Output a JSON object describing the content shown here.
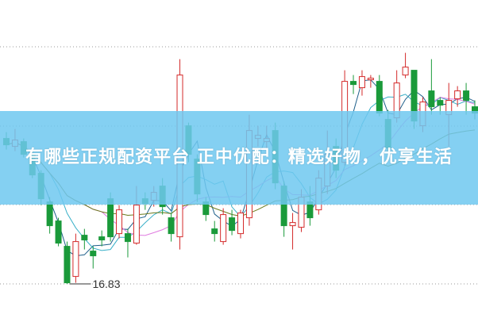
{
  "banner": {
    "title": "有哪些正规配资平台 正中优配：精选好物，优享生活"
  },
  "chart_data": {
    "type": "candlestick",
    "grid": true,
    "low_marker": {
      "label": "16.83",
      "value": 16.83
    },
    "colors": {
      "up": "#d42a2a",
      "down": "#1a9a3a",
      "ma": [
        "#1e5f8a",
        "#3ab0c8",
        "#e07ae0",
        "#6b7a1c"
      ],
      "grid": "#999999",
      "banner": "#6ec8f0"
    },
    "ylim": [
      16.0,
      33.0
    ],
    "gridlines": [
      31.78,
      26.78,
      21.83,
      16.83
    ],
    "ohlc": [
      [
        26.0,
        25.6,
        26.4,
        25.3
      ],
      [
        25.5,
        25.9,
        26.6,
        25.2
      ],
      [
        25.8,
        25.0,
        26.0,
        24.8
      ],
      [
        25.0,
        23.7,
        25.2,
        23.5
      ],
      [
        23.8,
        22.2,
        24.0,
        21.8
      ],
      [
        22.0,
        20.5,
        22.3,
        20.0
      ],
      [
        20.8,
        19.4,
        21.0,
        19.2
      ],
      [
        19.2,
        16.9,
        19.5,
        16.83
      ],
      [
        17.3,
        19.5,
        20.0,
        16.9
      ],
      [
        19.9,
        19.6,
        20.3,
        19.0
      ],
      [
        18.9,
        18.6,
        19.2,
        17.8
      ],
      [
        19.8,
        19.6,
        20.2,
        19.2
      ],
      [
        22.2,
        19.8,
        22.6,
        19.5
      ],
      [
        20.0,
        21.5,
        21.8,
        19.7
      ],
      [
        20.0,
        19.5,
        20.3,
        18.5
      ],
      [
        19.4,
        21.8,
        23.0,
        19.3
      ],
      [
        22.2,
        21.9,
        22.6,
        21.5
      ],
      [
        22.1,
        22.6,
        23.0,
        21.7
      ],
      [
        23.0,
        21.7,
        23.5,
        21.2
      ],
      [
        21.0,
        20.0,
        21.3,
        19.5
      ],
      [
        19.8,
        30.0,
        31.0,
        19.0
      ],
      [
        26.8,
        25.0,
        27.0,
        24.5
      ],
      [
        24.7,
        22.5,
        25.0,
        22.0
      ],
      [
        22.0,
        21.2,
        22.3,
        20.8
      ],
      [
        20.3,
        20.0,
        20.8,
        19.5
      ],
      [
        19.5,
        21.2,
        21.6,
        19.3
      ],
      [
        21.0,
        20.2,
        21.5,
        19.9
      ],
      [
        20.0,
        21.3,
        21.5,
        19.7
      ],
      [
        21.0,
        26.5,
        27.5,
        20.5
      ],
      [
        26.0,
        26.2,
        26.8,
        25.5
      ],
      [
        25.8,
        26.0,
        26.8,
        25.3
      ],
      [
        26.5,
        23.2,
        27.0,
        22.8
      ],
      [
        23.0,
        20.5,
        23.3,
        19.8
      ],
      [
        20.5,
        20.7,
        21.3,
        19.0
      ],
      [
        20.4,
        22.3,
        22.8,
        20.1
      ],
      [
        22.0,
        21.0,
        23.0,
        20.5
      ],
      [
        21.5,
        23.5,
        24.0,
        21.2
      ],
      [
        23.0,
        25.0,
        26.5,
        22.5
      ],
      [
        25.5,
        24.0,
        26.0,
        23.5
      ],
      [
        24.5,
        29.6,
        30.3,
        24.3
      ],
      [
        29.6,
        29.4,
        30.0,
        28.8
      ],
      [
        29.2,
        29.9,
        30.3,
        28.7
      ],
      [
        29.7,
        29.8,
        30.0,
        29.2
      ],
      [
        29.6,
        27.6,
        30.0,
        27.4
      ],
      [
        27.2,
        25.4,
        27.8,
        24.8
      ],
      [
        27.3,
        29.5,
        30.3,
        27.0
      ],
      [
        30.0,
        30.5,
        31.4,
        29.8
      ],
      [
        30.3,
        27.1,
        30.3,
        26.6
      ],
      [
        26.8,
        28.3,
        28.6,
        26.4
      ],
      [
        29.0,
        28.0,
        31.0,
        27.5
      ],
      [
        28.4,
        28.1,
        28.6,
        27.5
      ],
      [
        27.5,
        28.4,
        29.5,
        25.5
      ],
      [
        28.5,
        29.0,
        29.3,
        28.0
      ],
      [
        29.0,
        28.4,
        29.5,
        27.5
      ],
      [
        28.0,
        27.6,
        28.4,
        27.2
      ]
    ]
  }
}
